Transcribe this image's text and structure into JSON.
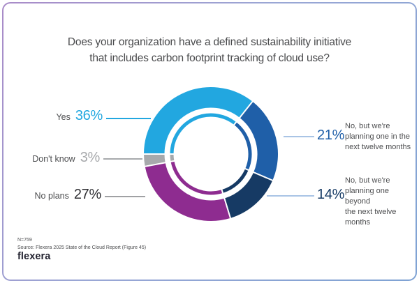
{
  "title": "Does your organization have a defined sustainability initiative\nthat includes carbon footprint tracking of cloud use?",
  "colors": {
    "cyan": "#22a7e0",
    "blue": "#1f5fa8",
    "navy": "#163a64",
    "purple": "#8e2c90",
    "gray": "#a7a9ac",
    "dark": "#2f2f33",
    "label_gray": "#4d4e50",
    "line_blue": "#a9c4e5",
    "line_gray": "#a0a1a4",
    "separator": "#ffffff"
  },
  "chart_data": {
    "type": "pie",
    "subtype": "double-donut",
    "title": "Does your organization have a defined sustainability initiative that includes carbon footprint tracking of cloud use?",
    "start_angle_deg": 270,
    "direction": "clockwise",
    "legend_position": "callouts",
    "segments": [
      {
        "label": "Yes",
        "pct": 36,
        "color": "#22a7e0"
      },
      {
        "label": "No, but we're planning one in the next twelve months",
        "pct": 21,
        "color": "#1f5fa8"
      },
      {
        "label": "No, but we're planning one beyond the next twelve months",
        "pct": 14,
        "color": "#163a64"
      },
      {
        "label": "No plans",
        "pct": 27,
        "color": "#8e2c90"
      },
      {
        "label": "Don't know",
        "pct": 3,
        "color": "#a7a9ac"
      }
    ]
  },
  "callouts": {
    "yes": {
      "label": "Yes",
      "pct": "36%"
    },
    "dont_know": {
      "label": "Don't know",
      "pct": "3%"
    },
    "no_plans": {
      "label": "No plans",
      "pct": "27%"
    },
    "next12": {
      "pct": "21%",
      "text": "No, but we're\nplanning one in the\nnext twelve months"
    },
    "beyond12": {
      "pct": "14%",
      "text": "No, but we're\nplanning one beyond\nthe next twelve\nmonths"
    }
  },
  "footer": {
    "n": "N=759",
    "source": "Source: Flexera 2025 State of the Cloud Report (Figure 45)",
    "logo": "flexera"
  }
}
